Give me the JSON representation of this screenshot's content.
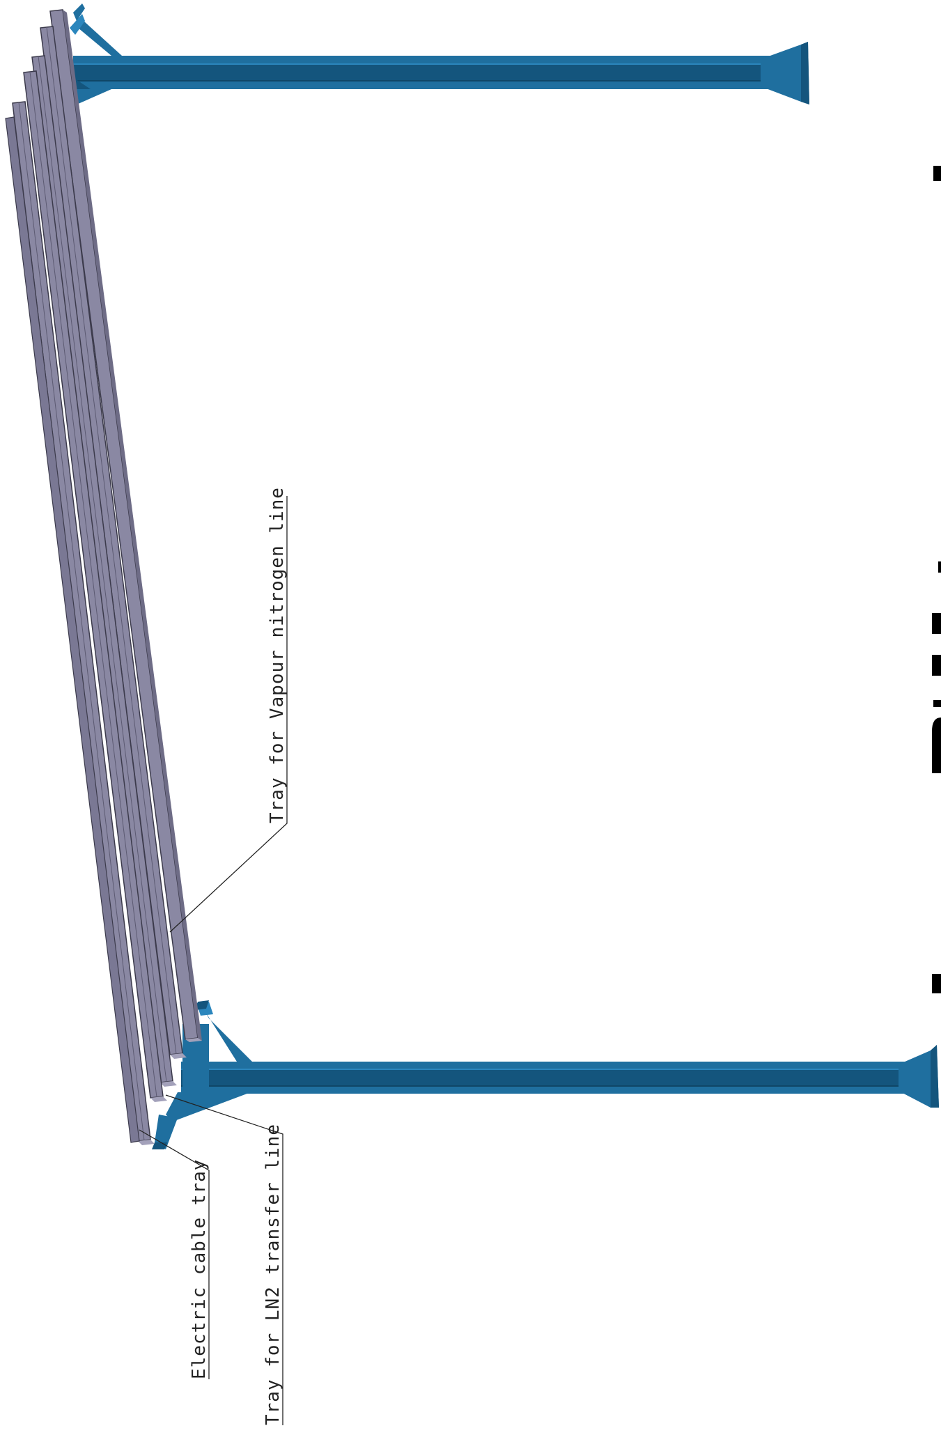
{
  "drawing": {
    "labels": {
      "vapour_tray": "Tray for Vapour nitrogen line",
      "electric_tray": "Electric cable tray",
      "ln2_tray": "Tray for LN2 transfer line"
    },
    "colors": {
      "background": "#ffffff",
      "steel_blue": "#1f6f9f",
      "steel_blue_dark": "#14557d",
      "steel_blue_light": "#2b86bd",
      "tray_face": "#8a88a3",
      "tray_top": "#a3a1ba",
      "tray_edge": "#3c3b4c",
      "leader_line": "#222222",
      "margin_marks": "#000000"
    },
    "components": [
      "steel-column-top",
      "steel-column-bottom",
      "cable-tray-bundle"
    ]
  }
}
